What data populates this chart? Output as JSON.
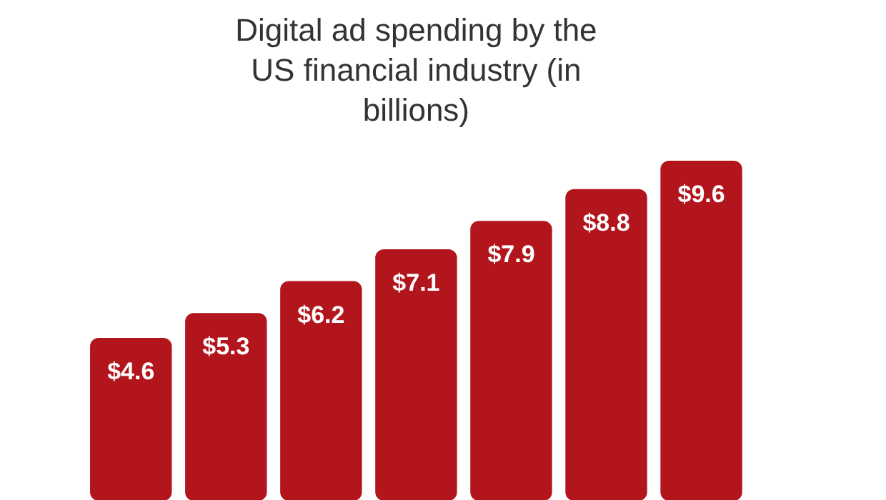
{
  "chart_data": {
    "type": "bar",
    "title": "Digital ad spending by the US financial industry (in billions)",
    "categories": [
      null,
      null,
      null,
      null,
      null,
      null,
      null
    ],
    "values": [
      4.6,
      5.3,
      6.2,
      7.1,
      7.9,
      8.8,
      9.6
    ],
    "value_labels": [
      "$4.6",
      "$5.3",
      "$6.2",
      "$7.1",
      "$7.9",
      "$8.8",
      "$9.6"
    ],
    "color": "#b3151d",
    "grid": false
  }
}
